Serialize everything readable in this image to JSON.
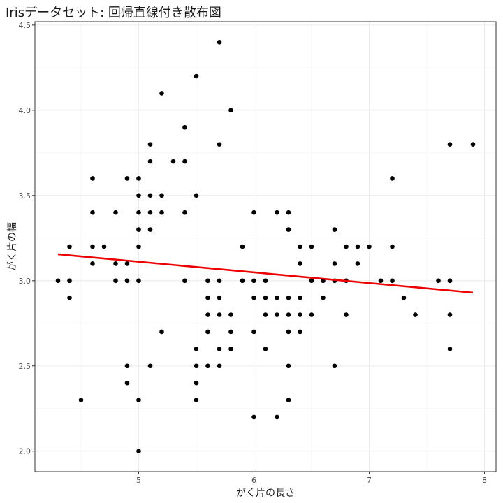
{
  "chart_data": {
    "type": "scatter",
    "title": "Irisデータセット: 回帰直線付き散布図",
    "xlabel": "がく片の長さ",
    "ylabel": "がく片の幅",
    "xlim": [
      4.1,
      8.1
    ],
    "ylim": [
      1.88,
      4.52
    ],
    "x_ticks": [
      "5",
      "6",
      "7",
      "8"
    ],
    "y_ticks": [
      "2.0",
      "2.5",
      "3.0",
      "3.5",
      "4.0",
      "4.5"
    ],
    "grid": true,
    "point_color": "#000000",
    "line_color": "#ee0000",
    "regression": {
      "x": [
        4.3,
        7.9
      ],
      "y": [
        3.155,
        2.93
      ]
    },
    "points": [
      [
        4.3,
        3.0
      ],
      [
        4.4,
        2.9
      ],
      [
        4.4,
        3.0
      ],
      [
        4.4,
        3.2
      ],
      [
        4.5,
        2.3
      ],
      [
        4.6,
        3.1
      ],
      [
        4.6,
        3.2
      ],
      [
        4.6,
        3.4
      ],
      [
        4.6,
        3.6
      ],
      [
        4.7,
        3.2
      ],
      [
        4.8,
        3.0
      ],
      [
        4.8,
        3.1
      ],
      [
        4.8,
        3.4
      ],
      [
        4.9,
        2.4
      ],
      [
        4.9,
        2.5
      ],
      [
        4.9,
        3.0
      ],
      [
        4.9,
        3.1
      ],
      [
        4.9,
        3.6
      ],
      [
        5.0,
        2.0
      ],
      [
        5.0,
        2.3
      ],
      [
        5.0,
        3.0
      ],
      [
        5.0,
        3.2
      ],
      [
        5.0,
        3.3
      ],
      [
        5.0,
        3.4
      ],
      [
        5.0,
        3.5
      ],
      [
        5.0,
        3.6
      ],
      [
        5.1,
        2.5
      ],
      [
        5.1,
        3.3
      ],
      [
        5.1,
        3.4
      ],
      [
        5.1,
        3.5
      ],
      [
        5.1,
        3.7
      ],
      [
        5.1,
        3.8
      ],
      [
        5.2,
        2.7
      ],
      [
        5.2,
        3.4
      ],
      [
        5.2,
        3.5
      ],
      [
        5.2,
        4.1
      ],
      [
        5.3,
        3.7
      ],
      [
        5.4,
        3.0
      ],
      [
        5.4,
        3.4
      ],
      [
        5.4,
        3.7
      ],
      [
        5.4,
        3.9
      ],
      [
        5.5,
        2.3
      ],
      [
        5.5,
        2.4
      ],
      [
        5.5,
        2.5
      ],
      [
        5.5,
        2.6
      ],
      [
        5.5,
        3.5
      ],
      [
        5.5,
        4.2
      ],
      [
        5.6,
        2.5
      ],
      [
        5.6,
        2.7
      ],
      [
        5.6,
        2.8
      ],
      [
        5.6,
        2.9
      ],
      [
        5.6,
        3.0
      ],
      [
        5.7,
        2.5
      ],
      [
        5.7,
        2.6
      ],
      [
        5.7,
        2.8
      ],
      [
        5.7,
        2.9
      ],
      [
        5.7,
        3.0
      ],
      [
        5.7,
        3.8
      ],
      [
        5.7,
        4.4
      ],
      [
        5.8,
        2.6
      ],
      [
        5.8,
        2.7
      ],
      [
        5.8,
        2.8
      ],
      [
        5.8,
        4.0
      ],
      [
        5.9,
        3.0
      ],
      [
        5.9,
        3.2
      ],
      [
        6.0,
        2.2
      ],
      [
        6.0,
        2.7
      ],
      [
        6.0,
        2.9
      ],
      [
        6.0,
        3.0
      ],
      [
        6.0,
        3.4
      ],
      [
        6.1,
        2.6
      ],
      [
        6.1,
        2.8
      ],
      [
        6.1,
        2.9
      ],
      [
        6.1,
        3.0
      ],
      [
        6.2,
        2.2
      ],
      [
        6.2,
        2.8
      ],
      [
        6.2,
        2.9
      ],
      [
        6.2,
        3.4
      ],
      [
        6.3,
        2.3
      ],
      [
        6.3,
        2.5
      ],
      [
        6.3,
        2.7
      ],
      [
        6.3,
        2.8
      ],
      [
        6.3,
        2.9
      ],
      [
        6.3,
        3.3
      ],
      [
        6.3,
        3.4
      ],
      [
        6.4,
        2.7
      ],
      [
        6.4,
        2.8
      ],
      [
        6.4,
        2.9
      ],
      [
        6.4,
        3.1
      ],
      [
        6.4,
        3.2
      ],
      [
        6.5,
        2.8
      ],
      [
        6.5,
        3.0
      ],
      [
        6.5,
        3.2
      ],
      [
        6.6,
        2.9
      ],
      [
        6.6,
        3.0
      ],
      [
        6.7,
        2.5
      ],
      [
        6.7,
        3.0
      ],
      [
        6.7,
        3.1
      ],
      [
        6.7,
        3.3
      ],
      [
        6.8,
        2.8
      ],
      [
        6.8,
        3.0
      ],
      [
        6.8,
        3.2
      ],
      [
        6.9,
        3.1
      ],
      [
        6.9,
        3.2
      ],
      [
        7.0,
        3.2
      ],
      [
        7.1,
        3.0
      ],
      [
        7.2,
        3.0
      ],
      [
        7.2,
        3.2
      ],
      [
        7.2,
        3.6
      ],
      [
        7.3,
        2.9
      ],
      [
        7.4,
        2.8
      ],
      [
        7.6,
        3.0
      ],
      [
        7.7,
        2.6
      ],
      [
        7.7,
        2.8
      ],
      [
        7.7,
        3.0
      ],
      [
        7.7,
        3.8
      ],
      [
        7.9,
        3.8
      ]
    ]
  }
}
